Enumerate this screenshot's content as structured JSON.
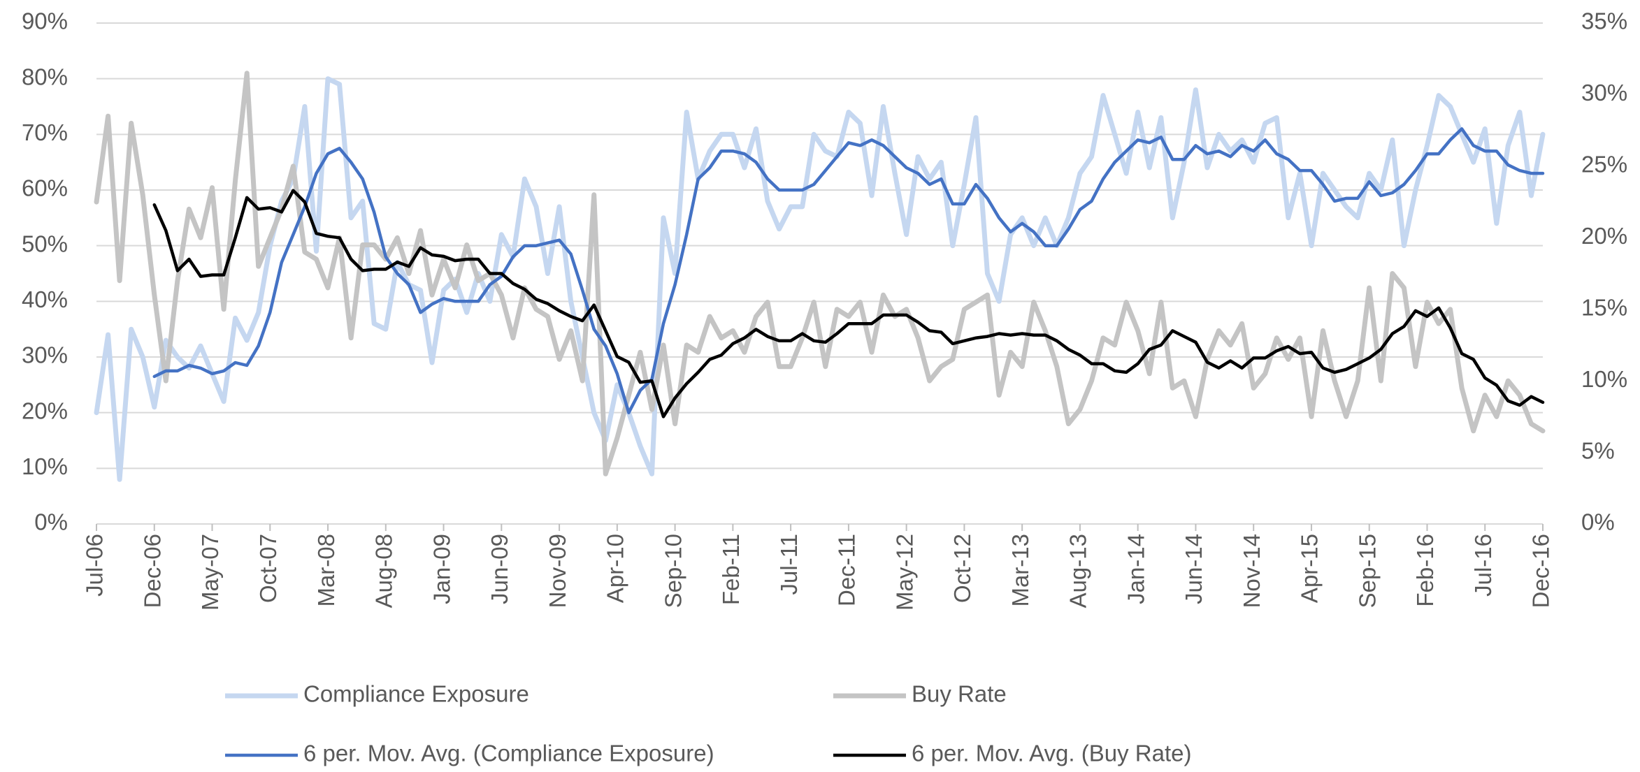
{
  "chart_data": {
    "type": "line",
    "categories": [
      "Jul-06",
      null,
      null,
      null,
      null,
      "Dec-06",
      null,
      null,
      null,
      null,
      "May-07",
      null,
      null,
      null,
      null,
      "Oct-07",
      null,
      null,
      null,
      null,
      "Mar-08",
      null,
      null,
      null,
      null,
      "Aug-08",
      null,
      null,
      null,
      null,
      "Jan-09",
      null,
      null,
      null,
      null,
      "Jun-09",
      null,
      null,
      null,
      null,
      "Nov-09",
      null,
      null,
      null,
      null,
      "Apr-10",
      null,
      null,
      null,
      null,
      "Sep-10",
      null,
      null,
      null,
      null,
      "Feb-11",
      null,
      null,
      null,
      null,
      "Jul-11",
      null,
      null,
      null,
      null,
      "Dec-11",
      null,
      null,
      null,
      null,
      "May-12",
      null,
      null,
      null,
      null,
      "Oct-12",
      null,
      null,
      null,
      null,
      "Mar-13",
      null,
      null,
      null,
      null,
      "Aug-13",
      null,
      null,
      null,
      null,
      "Jan-14",
      null,
      null,
      null,
      null,
      "Jun-14",
      null,
      null,
      null,
      null,
      "Nov-14",
      null,
      null,
      null,
      null,
      "Apr-15",
      null,
      null,
      null,
      null,
      "Sep-15",
      null,
      null,
      null,
      null,
      "Feb-16",
      null,
      null,
      null,
      null,
      "Jul-16",
      null,
      null,
      null,
      null,
      "Dec-16"
    ],
    "series": [
      {
        "name": "Compliance Exposure",
        "color": "#c5d7f0",
        "width": 7,
        "values": [
          20,
          34,
          8,
          35,
          30,
          21,
          33,
          30,
          28,
          32,
          27,
          22,
          37,
          33,
          38,
          50,
          58,
          62,
          75,
          49,
          80,
          79,
          55,
          58,
          36,
          35,
          47,
          43,
          42,
          29,
          42,
          44,
          38,
          45,
          40,
          52,
          48,
          62,
          57,
          45,
          57,
          40,
          30,
          20,
          15,
          25,
          20,
          14,
          9,
          55,
          45,
          74,
          62,
          67,
          70,
          70,
          64,
          71,
          58,
          53,
          57,
          57,
          70,
          67,
          66,
          74,
          72,
          59,
          75,
          63,
          52,
          66,
          62,
          65,
          50,
          61,
          73,
          45,
          40,
          52,
          55,
          50,
          55,
          50,
          55,
          63,
          66,
          77,
          70,
          63,
          74,
          64,
          73,
          55,
          65,
          78,
          64,
          70,
          67,
          69,
          65,
          72,
          73,
          55,
          63,
          50,
          63,
          60,
          57,
          55,
          63,
          60,
          69,
          50,
          60,
          68,
          77,
          75,
          70,
          65,
          71,
          54,
          68,
          74,
          59,
          70
        ]
      },
      {
        "name": "Buy Rate",
        "color": "#c4c4c4",
        "width": 7,
        "axis": "y2",
        "values": [
          22.5,
          28.5,
          17,
          28,
          23,
          16,
          10,
          17,
          22,
          20,
          23.5,
          15,
          24,
          31.5,
          18,
          20,
          22,
          25,
          19,
          18.5,
          16.5,
          20,
          13,
          19.5,
          19.5,
          18.5,
          20,
          17.5,
          20.5,
          16,
          18.5,
          16.5,
          19.5,
          17,
          17.5,
          16,
          13,
          16.5,
          15,
          14.5,
          11.5,
          13.5,
          10,
          23,
          3.5,
          6,
          9,
          12,
          8,
          12.5,
          7,
          12.5,
          12,
          14.5,
          13,
          13.5,
          12,
          14.5,
          15.5,
          11,
          11,
          13,
          15.5,
          11,
          15,
          14.5,
          15.5,
          12,
          16,
          14.5,
          15,
          13,
          10,
          11,
          11.5,
          15,
          15.5,
          16,
          9,
          12,
          11,
          15.5,
          13.5,
          11,
          7,
          8,
          10,
          13,
          12.5,
          15.5,
          13.5,
          10.5,
          15.5,
          9.5,
          10,
          7.5,
          11.5,
          13.5,
          12.5,
          14,
          9.5,
          10.5,
          13,
          11.5,
          13,
          7.5,
          13.5,
          10,
          7.5,
          10,
          16.5,
          10,
          17.5,
          16.5,
          11,
          15.5,
          14,
          15,
          9.5,
          6.5,
          9,
          7.5,
          10,
          9,
          7,
          6.5
        ]
      },
      {
        "name": "6 per. Mov. Avg. (Compliance Exposure)",
        "color": "#4472c4",
        "width": 4.5,
        "values": [
          null,
          null,
          null,
          null,
          null,
          26.5,
          27.5,
          27.5,
          28.5,
          28,
          27,
          27.5,
          29,
          28.5,
          32,
          38,
          47,
          52,
          57,
          63,
          66.5,
          67.5,
          65,
          62,
          56,
          48,
          45,
          43,
          38,
          39.5,
          40.5,
          40,
          40,
          40,
          43,
          44.5,
          48,
          50,
          50,
          50.5,
          51,
          48.5,
          42,
          35,
          32,
          27,
          20,
          24,
          26,
          36,
          43,
          52,
          62,
          64,
          67,
          67,
          66.5,
          65,
          62,
          60,
          60,
          60,
          61,
          63.5,
          66,
          68.5,
          68,
          69,
          68,
          66,
          64,
          63,
          61,
          62,
          57.5,
          57.5,
          61,
          58.5,
          55,
          52.5,
          54,
          52.5,
          50,
          50,
          53,
          56.5,
          58,
          62,
          65,
          67,
          69,
          68.5,
          69.5,
          65.5,
          65.5,
          68,
          66.5,
          67,
          66,
          68,
          67,
          69,
          66.5,
          65.5,
          63.5,
          63.5,
          61,
          58,
          58.5,
          58.5,
          61.5,
          59,
          59.5,
          61,
          63.5,
          66.5,
          66.5,
          69,
          71,
          68,
          67,
          67,
          64.5,
          63.5,
          63,
          63
        ]
      },
      {
        "name": "6 per. Mov. Avg. (Buy Rate)",
        "color": "#000000",
        "width": 4.5,
        "axis": "y2",
        "values": [
          null,
          null,
          null,
          null,
          null,
          22.3,
          20.5,
          17.7,
          18.5,
          17.3,
          17.4,
          17.4,
          20,
          22.8,
          22,
          22.1,
          21.8,
          23.3,
          22.5,
          20.3,
          20.1,
          20,
          18.5,
          17.7,
          17.8,
          17.8,
          18.3,
          18,
          19.3,
          18.8,
          18.7,
          18.4,
          18.5,
          18.5,
          17.5,
          17.5,
          16.8,
          16.4,
          15.7,
          15.4,
          14.9,
          14.5,
          14.2,
          15.3,
          13.5,
          11.7,
          11.3,
          9.9,
          10,
          7.5,
          8.8,
          9.8,
          10.6,
          11.5,
          11.8,
          12.6,
          13,
          13.6,
          13.1,
          12.8,
          12.8,
          13.3,
          12.8,
          12.7,
          13.3,
          14,
          14,
          14,
          14.6,
          14.6,
          14.6,
          14.1,
          13.5,
          13.4,
          12.6,
          12.8,
          13,
          13.1,
          13.3,
          13.2,
          13.3,
          13.2,
          13.2,
          12.8,
          12.2,
          11.8,
          11.2,
          11.2,
          10.7,
          10.6,
          11.2,
          12.2,
          12.5,
          13.5,
          13.1,
          12.7,
          11.3,
          10.9,
          11.4,
          10.9,
          11.6,
          11.6,
          12.1,
          12.4,
          11.9,
          12,
          10.9,
          10.6,
          10.8,
          11.2,
          11.6,
          12.2,
          13.3,
          13.8,
          14.9,
          14.5,
          15.1,
          13.7,
          11.9,
          11.5,
          10.2,
          9.7,
          8.6,
          8.3,
          8.9,
          8.5
        ]
      }
    ],
    "ylim": [
      0,
      90
    ],
    "yticks": [
      {
        "value": 0,
        "label": "0%"
      },
      {
        "value": 10,
        "label": "10%"
      },
      {
        "value": 20,
        "label": "20%"
      },
      {
        "value": 30,
        "label": "30%"
      },
      {
        "value": 40,
        "label": "40%"
      },
      {
        "value": 50,
        "label": "50%"
      },
      {
        "value": 60,
        "label": "60%"
      },
      {
        "value": 70,
        "label": "70%"
      },
      {
        "value": 80,
        "label": "80%"
      },
      {
        "value": 90,
        "label": "90%"
      }
    ],
    "y2lim": [
      0,
      35
    ],
    "y2ticks": [
      {
        "value": 0,
        "label": "0%"
      },
      {
        "value": 5,
        "label": "5%"
      },
      {
        "value": 10,
        "label": "10%"
      },
      {
        "value": 15,
        "label": "15%"
      },
      {
        "value": 20,
        "label": "20%"
      },
      {
        "value": 25,
        "label": "25%"
      },
      {
        "value": 30,
        "label": "30%"
      },
      {
        "value": 35,
        "label": "35%"
      }
    ],
    "grid": true,
    "legend": "bottom"
  }
}
